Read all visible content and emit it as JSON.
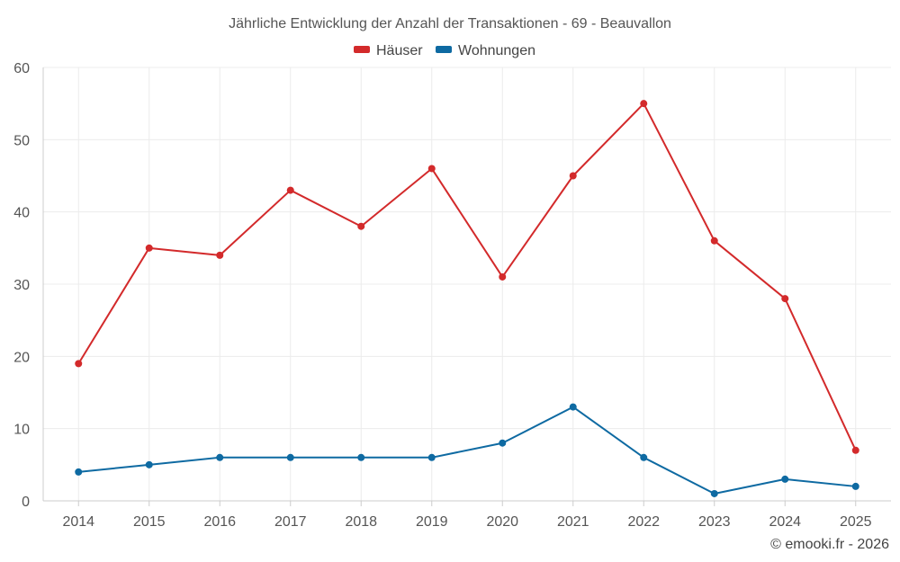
{
  "chart_data": {
    "type": "line",
    "title": "Jährliche Entwicklung der Anzahl der Transaktionen - 69 - Beauvallon",
    "categories": [
      "2014",
      "2015",
      "2016",
      "2017",
      "2018",
      "2019",
      "2020",
      "2021",
      "2022",
      "2023",
      "2024",
      "2025"
    ],
    "series": [
      {
        "name": "Häuser",
        "color": "#d32a2b",
        "values": [
          19,
          35,
          34,
          43,
          38,
          46,
          31,
          45,
          55,
          36,
          28,
          7
        ]
      },
      {
        "name": "Wohnungen",
        "color": "#0e6aa2",
        "values": [
          4,
          5,
          6,
          6,
          6,
          6,
          8,
          13,
          6,
          1,
          3,
          2
        ]
      }
    ],
    "ylim": [
      0,
      60
    ],
    "yticks": [
      0,
      10,
      20,
      30,
      40,
      50,
      60
    ],
    "xlabel": "",
    "ylabel": "",
    "grid": true,
    "legend_position": "top-center"
  },
  "credit": "© emooki.fr - 2026"
}
